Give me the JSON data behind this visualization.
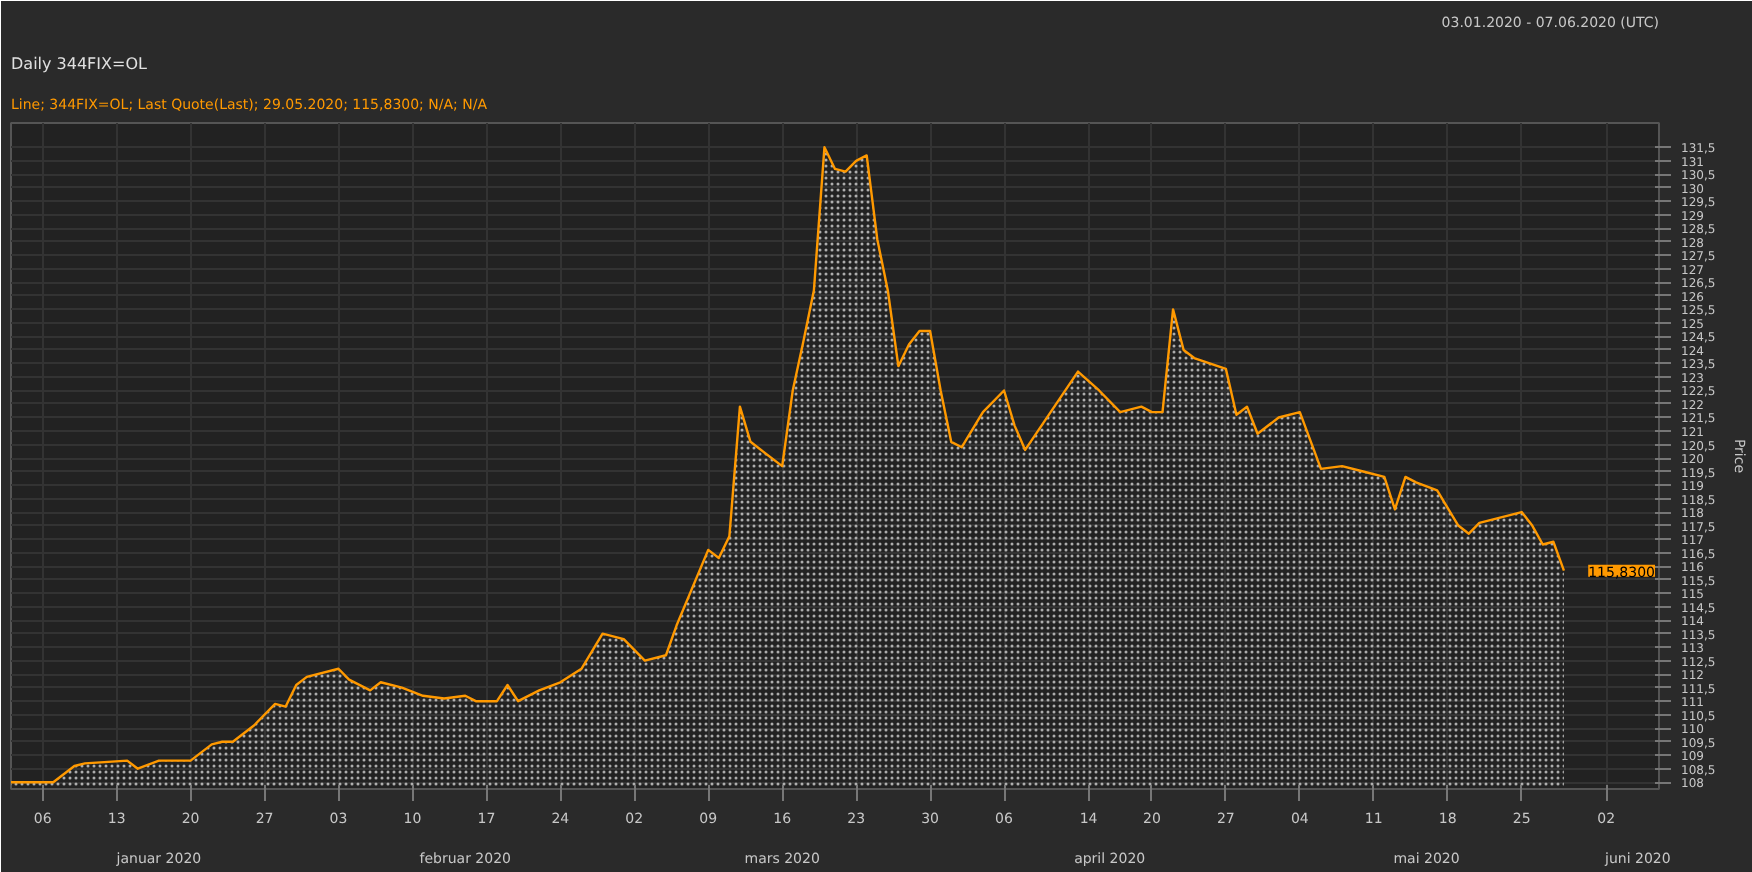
{
  "chart_data": {
    "type": "area",
    "title": "Daily 344FIX=OL",
    "subtitle": "Line; 344FIX=OL; Last Quote(Last); 29.05.2020; 115,8300; N/A; N/A",
    "ylabel": "Price",
    "annotations": [
      "03.01.2020 - 07.06.2020 (UTC)",
      "115,8300"
    ],
    "grid": true,
    "series": [
      {
        "color": "#ff9900",
        "x": [
          "2020-01-03",
          "2020-01-07",
          "2020-01-09",
          "2020-01-10",
          "2020-01-14",
          "2020-01-15",
          "2020-01-17",
          "2020-01-20",
          "2020-01-22",
          "2020-01-23",
          "2020-01-24",
          "2020-01-26",
          "2020-01-28",
          "2020-01-29",
          "2020-01-30",
          "2020-01-31",
          "2020-02-03",
          "2020-02-04",
          "2020-02-06",
          "2020-02-07",
          "2020-02-09",
          "2020-02-11",
          "2020-02-13",
          "2020-02-15",
          "2020-02-16",
          "2020-02-18",
          "2020-02-19",
          "2020-02-20",
          "2020-02-22",
          "2020-02-24",
          "2020-02-26",
          "2020-02-28",
          "2020-03-01",
          "2020-03-03",
          "2020-03-05",
          "2020-03-06",
          "2020-03-09",
          "2020-03-10",
          "2020-03-11",
          "2020-03-12",
          "2020-03-13",
          "2020-03-16",
          "2020-03-17",
          "2020-03-18",
          "2020-03-19",
          "2020-03-20",
          "2020-03-21",
          "2020-03-22",
          "2020-03-23",
          "2020-03-24",
          "2020-03-25",
          "2020-03-26",
          "2020-03-27",
          "2020-03-28",
          "2020-03-29",
          "2020-03-30",
          "2020-03-31",
          "2020-04-01",
          "2020-04-02",
          "2020-04-04",
          "2020-04-06",
          "2020-04-07",
          "2020-04-08",
          "2020-04-13",
          "2020-04-15",
          "2020-04-17",
          "2020-04-19",
          "2020-04-20",
          "2020-04-21",
          "2020-04-22",
          "2020-04-23",
          "2020-04-24",
          "2020-04-27",
          "2020-04-28",
          "2020-04-29",
          "2020-04-30",
          "2020-05-02",
          "2020-05-04",
          "2020-05-06",
          "2020-05-08",
          "2020-05-10",
          "2020-05-12",
          "2020-05-13",
          "2020-05-14",
          "2020-05-15",
          "2020-05-17",
          "2020-05-19",
          "2020-05-20",
          "2020-05-21",
          "2020-05-25",
          "2020-05-26",
          "2020-05-27",
          "2020-05-28",
          "2020-05-29"
        ],
        "values": [
          108.0,
          108.0,
          108.6,
          108.7,
          108.8,
          108.5,
          108.8,
          108.8,
          109.4,
          109.5,
          109.5,
          110.1,
          110.9,
          110.8,
          111.6,
          111.9,
          112.2,
          111.8,
          111.4,
          111.7,
          111.5,
          111.2,
          111.1,
          111.2,
          111.0,
          111.0,
          111.6,
          111.0,
          111.4,
          111.7,
          112.2,
          113.5,
          113.3,
          112.5,
          112.7,
          113.8,
          116.6,
          116.3,
          117.1,
          121.9,
          120.6,
          119.7,
          122.5,
          124.3,
          126.2,
          131.5,
          130.7,
          130.6,
          131.0,
          131.2,
          128.1,
          126.2,
          123.4,
          124.2,
          124.7,
          124.7,
          122.5,
          120.6,
          120.4,
          121.7,
          122.5,
          121.2,
          120.3,
          123.2,
          122.5,
          121.7,
          121.9,
          121.7,
          121.7,
          125.5,
          124.0,
          123.7,
          123.3,
          121.6,
          121.9,
          120.9,
          121.5,
          121.7,
          119.6,
          119.7,
          119.5,
          119.3,
          118.1,
          119.3,
          119.1,
          118.8,
          117.5,
          117.2,
          117.6,
          118.0,
          117.5,
          116.8,
          116.9,
          115.83
        ]
      }
    ],
    "xlim": [
      "2020-01-03",
      "2020-06-07"
    ],
    "xticks": [
      {
        "value": "2020-01-06",
        "label": "06"
      },
      {
        "value": "2020-01-13",
        "label": "13"
      },
      {
        "value": "2020-01-20",
        "label": "20"
      },
      {
        "value": "2020-01-27",
        "label": "27"
      },
      {
        "value": "2020-02-03",
        "label": "03"
      },
      {
        "value": "2020-02-10",
        "label": "10"
      },
      {
        "value": "2020-02-17",
        "label": "17"
      },
      {
        "value": "2020-02-24",
        "label": "24"
      },
      {
        "value": "2020-03-02",
        "label": "02"
      },
      {
        "value": "2020-03-09",
        "label": "09"
      },
      {
        "value": "2020-03-16",
        "label": "16"
      },
      {
        "value": "2020-03-23",
        "label": "23"
      },
      {
        "value": "2020-03-30",
        "label": "30"
      },
      {
        "value": "2020-04-06",
        "label": "06"
      },
      {
        "value": "2020-04-14",
        "label": "14"
      },
      {
        "value": "2020-04-20",
        "label": "20"
      },
      {
        "value": "2020-04-27",
        "label": "27"
      },
      {
        "value": "2020-05-04",
        "label": "04"
      },
      {
        "value": "2020-05-11",
        "label": "11"
      },
      {
        "value": "2020-05-18",
        "label": "18"
      },
      {
        "value": "2020-05-25",
        "label": "25"
      },
      {
        "value": "2020-06-02",
        "label": "02"
      }
    ],
    "x2lim": [
      "2020-01-03",
      "2020-06-07"
    ],
    "x2ticks": [
      {
        "value": "2020-01-17",
        "label": "januar 2020"
      },
      {
        "value": "2020-02-15",
        "label": "februar 2020"
      },
      {
        "value": "2020-03-16",
        "label": "mars 2020"
      },
      {
        "value": "2020-04-16",
        "label": "april 2020"
      },
      {
        "value": "2020-05-16",
        "label": "mai 2020"
      },
      {
        "value": "2020-06-05",
        "label": "juni 2020"
      }
    ],
    "ylim": [
      107.75,
      132.4
    ],
    "yticks": [
      108,
      {
        "value": 108.5,
        "label": "108,5"
      },
      109,
      {
        "value": 109.5,
        "label": "109,5"
      },
      110,
      {
        "value": 110.5,
        "label": "110,5"
      },
      111,
      {
        "value": 111.5,
        "label": "111,5"
      },
      112,
      {
        "value": 112.5,
        "label": "112,5"
      },
      113,
      {
        "value": 113.5,
        "label": "113,5"
      },
      114,
      {
        "value": 114.5,
        "label": "114,5"
      },
      115,
      {
        "value": 115.5,
        "label": "115,5"
      },
      116,
      {
        "value": 116.5,
        "label": "116,5"
      },
      117,
      {
        "value": 117.5,
        "label": "117,5"
      },
      118,
      {
        "value": 118.5,
        "label": "118,5"
      },
      119,
      {
        "value": 119.5,
        "label": "119,5"
      },
      120,
      {
        "value": 120.5,
        "label": "120,5"
      },
      121,
      {
        "value": 121.5,
        "label": "121,5"
      },
      122,
      {
        "value": 122.5,
        "label": "122,5"
      },
      123,
      {
        "value": 123.5,
        "label": "123,5"
      },
      124,
      {
        "value": 124.5,
        "label": "124,5"
      },
      125,
      {
        "value": 125.5,
        "label": "125,5"
      },
      126,
      {
        "value": 126.5,
        "label": "126,5"
      },
      127,
      {
        "value": 127.5,
        "label": "127,5"
      },
      128,
      {
        "value": 128.5,
        "label": "128,5"
      },
      129,
      {
        "value": 129.5,
        "label": "129,5"
      },
      130,
      {
        "value": 130.5,
        "label": "130,5"
      },
      131,
      {
        "value": 131.5,
        "label": "131,5"
      }
    ]
  }
}
